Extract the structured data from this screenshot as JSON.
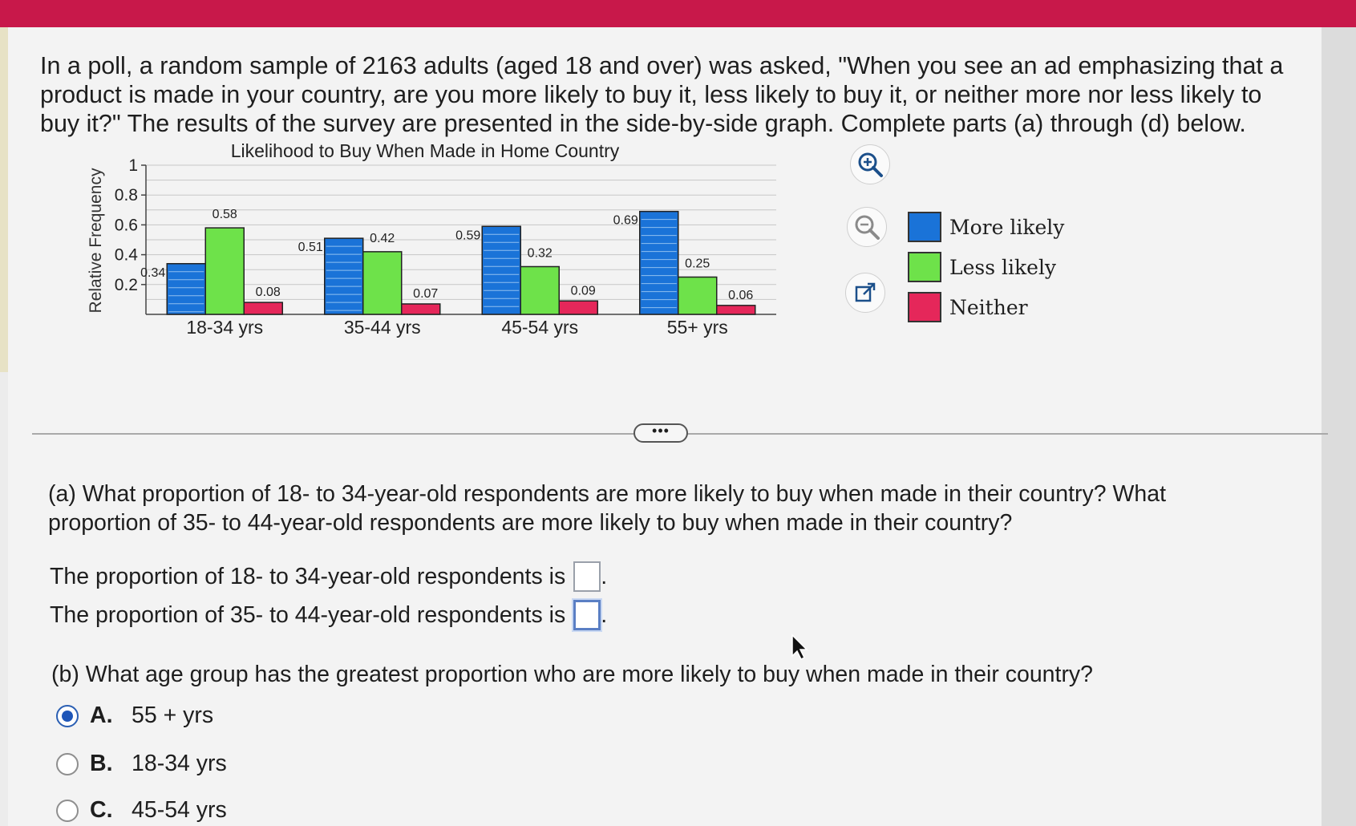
{
  "intro_text": "In a poll, a random sample of 2163 adults (aged 18 and over) was asked, \"When you see an ad emphasizing that a product is made in your country, are you more likely to buy it, less likely to buy it, or neither more nor less likely to buy it?\" The results of the survey are presented in the side-by-side graph. Complete parts (a) through (d) below.",
  "tools": {
    "zoom_in_icon": "zoom-in-icon",
    "zoom_out_icon": "zoom-out-icon",
    "popout_icon": "external-link-icon"
  },
  "legend": [
    {
      "label": "More likely",
      "color": "#1a73d8"
    },
    {
      "label": "Less likely",
      "color": "#6ee24a"
    },
    {
      "label": "Neither",
      "color": "#e5275a"
    }
  ],
  "more_label": "•••",
  "part_a": {
    "question": "(a) What proportion of 18- to 34-year-old respondents are more likely to buy when made in their country? What proportion of 35- to 44-year-old respondents are more likely to buy when made in their country?",
    "line1": "The proportion of 18- to 34-year-old respondents is",
    "line2": "The proportion of 35- to 44-year-old respondents is",
    "line1_value": "",
    "line2_value": ""
  },
  "part_b": {
    "question": "(b) What age group has the greatest proportion who are more likely to buy when made in their country?",
    "options": [
      {
        "letter": "A.",
        "text": "55 + yrs",
        "selected": true
      },
      {
        "letter": "B.",
        "text": "18-34 yrs",
        "selected": false
      },
      {
        "letter": "C.",
        "text": "45-54 yrs",
        "selected": false
      }
    ]
  },
  "chart_data": {
    "type": "bar",
    "title": "Likelihood to Buy When Made in Home Country",
    "ylabel": "Relative Frequency",
    "xlabel": "",
    "categories": [
      "18-34 yrs",
      "35-44 yrs",
      "45-54 yrs",
      "55+ yrs"
    ],
    "series": [
      {
        "name": "More likely",
        "values": [
          0.34,
          0.51,
          0.59,
          0.69
        ]
      },
      {
        "name": "Less likely",
        "values": [
          0.58,
          0.42,
          0.32,
          0.25
        ]
      },
      {
        "name": "Neither",
        "values": [
          0.08,
          0.07,
          0.09,
          0.06
        ]
      }
    ],
    "ylim": [
      0,
      1
    ],
    "yticks": [
      "0.2",
      "0.4",
      "0.6",
      "0.8",
      "1"
    ],
    "value_labels": [
      [
        "0.34",
        "0.51",
        "0.59",
        "0.69"
      ],
      [
        "0.58",
        "0.42",
        "0.32",
        "0.25"
      ],
      [
        "0.08",
        "0.07",
        "0.09",
        "0.06"
      ]
    ],
    "grid": true,
    "legend": "right"
  }
}
